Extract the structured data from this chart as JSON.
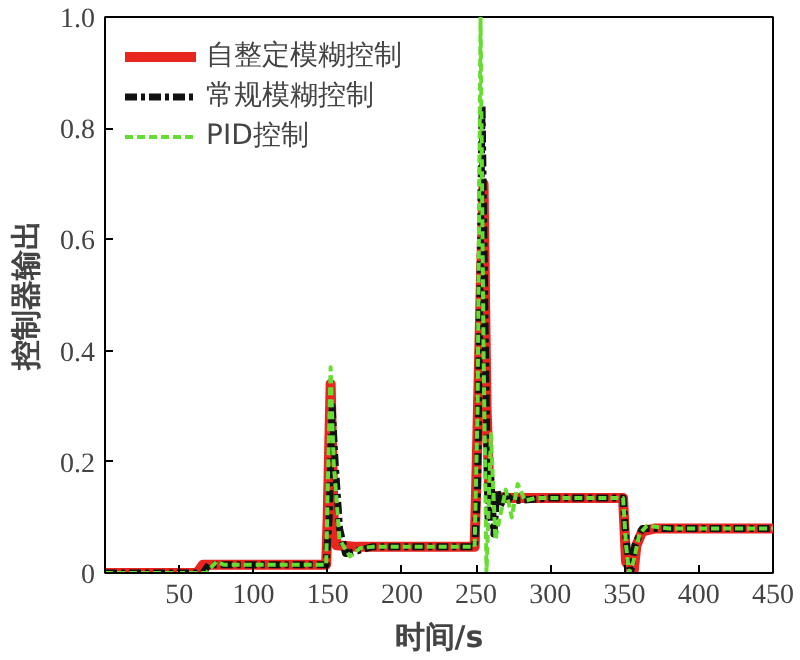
{
  "chart_data": {
    "type": "line",
    "xlabel": "时间/s",
    "ylabel": "控制器输出",
    "xlim": [
      0,
      450
    ],
    "ylim": [
      0,
      1.0
    ],
    "xticks": [
      50,
      100,
      150,
      200,
      250,
      300,
      350,
      400,
      450
    ],
    "yticks": [
      0,
      0.2,
      0.4,
      0.6,
      0.8,
      {
        "value": 1.0,
        "label": "1.0"
      }
    ],
    "grid": false,
    "legend": "top left",
    "series": [
      {
        "name": "自整定模糊控制",
        "color": "#e8251e",
        "line_style": "solid",
        "x": [
          0,
          62,
          66,
          100,
          149,
          150,
          152,
          154,
          156,
          170,
          200,
          249,
          250,
          253,
          255,
          257,
          259,
          270,
          300,
          349,
          351,
          356,
          358,
          362,
          370,
          450
        ],
        "values": [
          0,
          0,
          0.015,
          0.015,
          0.015,
          0.1,
          0.34,
          0.1,
          0.05,
          0.047,
          0.047,
          0.047,
          0.15,
          0.5,
          0.7,
          0.3,
          0.14,
          0.135,
          0.135,
          0.135,
          0.02,
          0.0,
          0.05,
          0.075,
          0.08,
          0.08
        ]
      },
      {
        "name": "常规模糊控制",
        "color": "#111111",
        "line_style": "dashdot",
        "x": [
          0,
          66,
          70,
          100,
          149,
          151,
          153,
          155,
          158,
          162,
          170,
          180,
          249,
          251,
          254,
          256,
          258,
          260,
          262,
          264,
          266,
          270,
          275,
          300,
          349,
          351,
          354,
          357,
          362,
          370,
          450
        ],
        "values": [
          0,
          0,
          0.015,
          0.015,
          0.015,
          0.1,
          0.3,
          0.2,
          0.08,
          0.035,
          0.04,
          0.047,
          0.047,
          0.15,
          0.84,
          0.45,
          0.1,
          0.17,
          0.07,
          0.15,
          0.12,
          0.14,
          0.13,
          0.135,
          0.135,
          0.06,
          0.0,
          0.05,
          0.08,
          0.08,
          0.08
        ]
      },
      {
        "name": "PID控制",
        "color": "#66dd33",
        "line_style": "dashed",
        "x": [
          0,
          68,
          75,
          80,
          100,
          149,
          150,
          152,
          154,
          158,
          165,
          172,
          180,
          249,
          251,
          253,
          255,
          257,
          260,
          263,
          266,
          270,
          274,
          278,
          283,
          290,
          300,
          349,
          351,
          353,
          356,
          360,
          365,
          380,
          450
        ],
        "values": [
          0,
          0,
          0.02,
          0.015,
          0.015,
          0.015,
          0.15,
          0.37,
          0.2,
          0.06,
          0.03,
          0.045,
          0.047,
          0.047,
          0.3,
          1.0,
          0.4,
          0.0,
          0.25,
          0.06,
          0.1,
          0.15,
          0.1,
          0.16,
          0.13,
          0.135,
          0.135,
          0.135,
          0.05,
          0.0,
          0.02,
          0.07,
          0.085,
          0.08,
          0.08
        ]
      }
    ]
  }
}
